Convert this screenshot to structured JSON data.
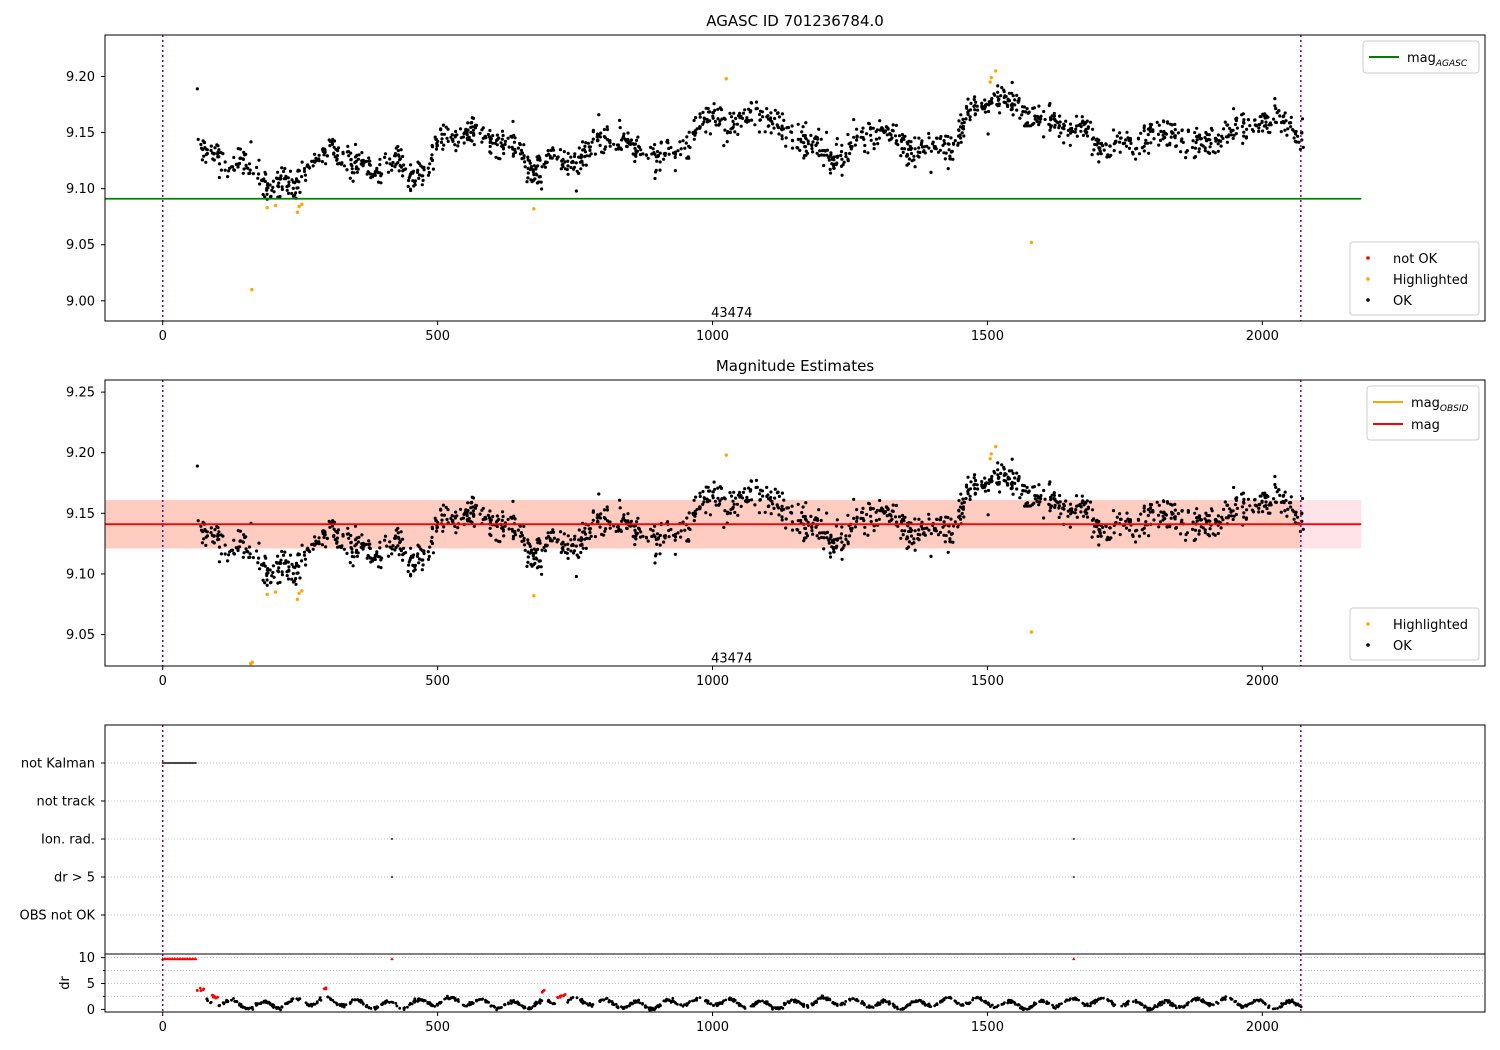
{
  "chart_data": [
    {
      "type": "scatter",
      "title": "AGASC ID 701236784.0",
      "xlim": [
        -105,
        2405
      ],
      "ylim": [
        8.982,
        9.237
      ],
      "xticks": [
        0,
        500,
        1000,
        1500,
        2000
      ],
      "yticks": [
        9.0,
        9.05,
        9.1,
        9.15,
        9.2
      ],
      "ytick_labels": [
        "9.00",
        "9.05",
        "9.10",
        "9.15",
        "9.20"
      ],
      "grid": false,
      "obsid_label": "43474",
      "obsid_label_pos": [
        1035,
        8.99
      ],
      "vlines": [
        0,
        2070
      ],
      "hline": {
        "y": 9.091,
        "xmin": -105,
        "xmax": 2180,
        "color": "#008000"
      },
      "legend_lines": [
        {
          "name": "mag",
          "sub": "AGASC",
          "color": "#008000"
        }
      ],
      "legend_points": [
        {
          "name": "not OK",
          "color": "#ff0000"
        },
        {
          "name": "Highlighted",
          "color": "#ffa500"
        },
        {
          "name": "OK",
          "color": "#000000"
        }
      ],
      "highlighted": [
        [
          162,
          9.01
        ],
        [
          190,
          9.083
        ],
        [
          205,
          9.085
        ],
        [
          245,
          9.079
        ],
        [
          248,
          9.084
        ],
        [
          253,
          9.086
        ],
        [
          675,
          9.082
        ],
        [
          1025,
          9.198
        ],
        [
          1505,
          9.195
        ],
        [
          1507,
          9.199
        ],
        [
          1515,
          9.205
        ],
        [
          1580,
          9.052
        ]
      ]
    },
    {
      "type": "scatter",
      "title": "Magnitude Estimates",
      "xlim": [
        -105,
        2405
      ],
      "ylim": [
        9.024,
        9.26
      ],
      "xticks": [
        0,
        500,
        1000,
        1500,
        2000
      ],
      "yticks": [
        9.05,
        9.1,
        9.15,
        9.2,
        9.25
      ],
      "ytick_labels": [
        "9.05",
        "9.10",
        "9.15",
        "9.20",
        "9.25"
      ],
      "grid": false,
      "obsid_label": "43474",
      "obsid_label_pos": [
        1035,
        9.031
      ],
      "vlines": [
        0,
        2070
      ],
      "mean_line": {
        "y": 9.141,
        "xmin": -105,
        "xmax": 2180,
        "color": "#ff0000"
      },
      "mean_band": {
        "y0": 9.121,
        "y1": 9.161,
        "xmin": -105,
        "xmax": 2180,
        "color": "#ffc0cb"
      },
      "obsid_band": {
        "y0": 9.121,
        "y1": 9.161,
        "xmin": -105,
        "xmax": 2070,
        "color": "#ffa07a"
      },
      "legend_lines": [
        {
          "name": "mag",
          "sub": "OBSID",
          "color": "#ffa500"
        },
        {
          "name": "mag",
          "sub": "",
          "color": "#ff0000"
        }
      ],
      "legend_points": [
        {
          "name": "Highlighted",
          "color": "#ffa500"
        },
        {
          "name": "OK",
          "color": "#000000"
        }
      ],
      "highlighted": [
        [
          160,
          9.026
        ],
        [
          163,
          9.027
        ],
        [
          190,
          9.083
        ],
        [
          205,
          9.085
        ],
        [
          245,
          9.079
        ],
        [
          248,
          9.084
        ],
        [
          253,
          9.086
        ],
        [
          675,
          9.082
        ],
        [
          1025,
          9.198
        ],
        [
          1505,
          9.195
        ],
        [
          1507,
          9.199
        ],
        [
          1515,
          9.205
        ],
        [
          1580,
          9.052
        ]
      ]
    },
    {
      "type": "scatter",
      "title": "",
      "xlim": [
        -105,
        2405
      ],
      "xticks": [
        0,
        500,
        1000,
        1500,
        2000
      ],
      "flag_labels": [
        "not Kalman",
        "not track",
        "Ion. rad.",
        "dr > 5",
        "OBS not OK"
      ],
      "flag_events": {
        "not Kalman": [
          [
            0,
            62
          ]
        ],
        "not track": [],
        "Ion. rad.": [
          [
            417,
            417
          ],
          [
            1657,
            1657
          ]
        ],
        "dr > 5": [
          [
            417,
            417
          ],
          [
            1657,
            1657
          ]
        ],
        "OBS not OK": []
      },
      "vlines": [
        0,
        2070
      ]
    },
    {
      "type": "scatter",
      "title": "",
      "xlim": [
        -105,
        2405
      ],
      "ylim": [
        -0.5,
        10.7
      ],
      "xticks": [
        0,
        500,
        1000,
        1500,
        2000
      ],
      "yticks": [
        0,
        5,
        10
      ],
      "ylabel": "dr",
      "grid": true,
      "vlines": [
        0,
        2070
      ],
      "capped_value": 9.8,
      "capped_runs": [
        [
          0,
          62
        ],
        [
          417,
          417
        ],
        [
          1657,
          1657
        ]
      ],
      "red_runs": [
        [
          60,
          75
        ],
        [
          90,
          100
        ],
        [
          290,
          300
        ],
        [
          690,
          700
        ],
        [
          715,
          735
        ]
      ]
    }
  ]
}
